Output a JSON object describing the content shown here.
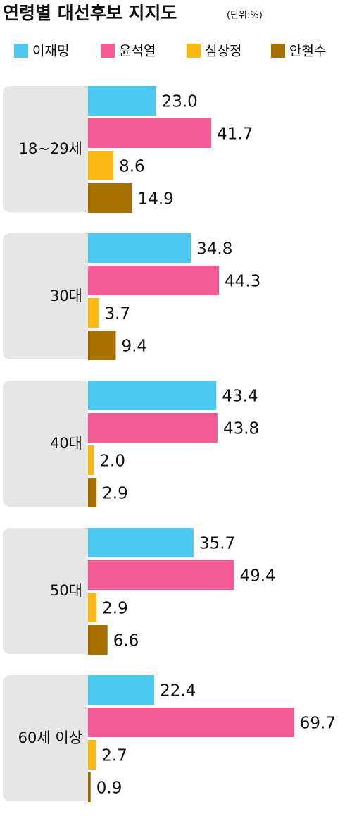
{
  "chart_data": {
    "type": "hbar",
    "title": "연령별 대선후보 지지도",
    "subtitle": "(단위:%)",
    "categories": [
      "18~29세",
      "30대",
      "40대",
      "50대",
      "60세 이상"
    ],
    "series": [
      {
        "name": "이재명",
        "color": "#4dc8f0",
        "values": [
          23.0,
          34.8,
          43.4,
          35.7,
          22.4
        ],
        "value_labels": [
          "23.0",
          "34.8",
          "43.4",
          "35.7",
          "22.4"
        ]
      },
      {
        "name": "윤석열",
        "color": "#f45a95",
        "values": [
          41.7,
          44.3,
          43.8,
          49.4,
          69.7
        ],
        "value_labels": [
          "41.7",
          "44.3",
          "43.8",
          "49.4",
          "69.7"
        ]
      },
      {
        "name": "심상정",
        "color": "#fdb913",
        "values": [
          8.6,
          3.7,
          2.0,
          2.9,
          2.7
        ],
        "value_labels": [
          "8.6",
          "3.7",
          "2.0",
          "2.9",
          "2.7"
        ]
      },
      {
        "name": "안철수",
        "color": "#a87000",
        "values": [
          14.9,
          9.4,
          2.9,
          6.6,
          0.9
        ],
        "value_labels": [
          "14.9",
          "9.4",
          "2.9",
          "6.6",
          "0.9"
        ]
      }
    ]
  }
}
